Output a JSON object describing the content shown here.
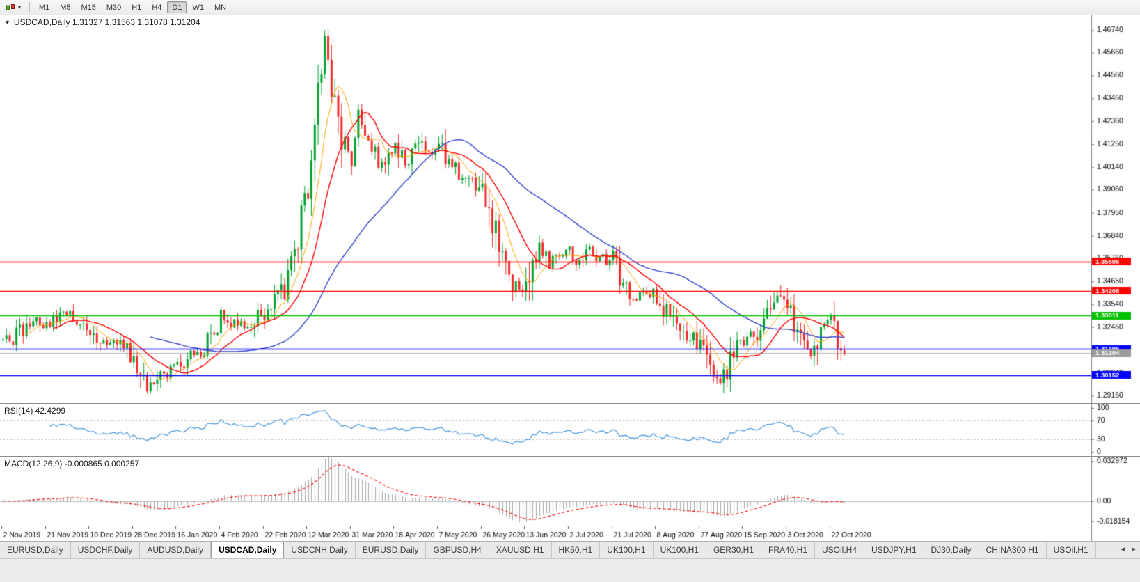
{
  "colors": {
    "up_candle": "#00a32e",
    "down_candle": "#f52a2a",
    "ma_fast": "#ffa400",
    "ma_mid": "#ff0000",
    "ma_slow": "#3344cc",
    "rsi_line": "#4596e0",
    "macd_hist": "#a9a9a9",
    "macd_signal": "#ff0000",
    "axis_line": "#808080",
    "level_dots": "#bdbdbd",
    "text": "#000000"
  },
  "toolbar": {
    "timeframes": [
      "M1",
      "M5",
      "M15",
      "M30",
      "H1",
      "H4",
      "D1",
      "W1",
      "MN"
    ],
    "active": "D1"
  },
  "main_chart": {
    "title": "USDCAD,Daily 1.31327 1.31563 1.31078 1.31204",
    "symbol": "USDCAD",
    "period": "Daily",
    "ohlc": {
      "open": "1.31327",
      "high": "1.31563",
      "low": "1.31078",
      "close": "1.31204"
    }
  },
  "tabs": {
    "items": [
      "EURUSD,Daily",
      "USDCHF,Daily",
      "AUDUSD,Daily",
      "USDCAD,Daily",
      "USDCNH,Daily",
      "EURUSD,Daily",
      "GBPUSD,H4",
      "XAUUSD,H1",
      "HK50,H1",
      "UK100,H1",
      "UK100,H1",
      "GER30,H1",
      "FRA40,H1",
      "USOil,H4",
      "USDJPY,H1",
      "DJ30,Daily",
      "CHINA300,H1",
      "USOil,H1"
    ],
    "active_index": 3
  },
  "chart_data": {
    "type": "candlestick",
    "symbol": "USDCAD",
    "timeframe": "Daily",
    "bar_count": 252,
    "seed": 20201030,
    "plot_fraction": 0.774,
    "last_candle": {
      "open": 1.31327,
      "high": 1.31563,
      "low": 1.31078,
      "close": 1.31204
    },
    "spike": {
      "bar": 96,
      "high": 1.4674
    },
    "close_anchors": [
      [
        0,
        1.3165
      ],
      [
        4,
        1.321
      ],
      [
        9,
        1.3275
      ],
      [
        13,
        1.325
      ],
      [
        18,
        1.3305
      ],
      [
        22,
        1.328
      ],
      [
        26,
        1.3245
      ],
      [
        30,
        1.317
      ],
      [
        35,
        1.316
      ],
      [
        39,
        1.3085
      ],
      [
        43,
        1.2955
      ],
      [
        47,
        1.301
      ],
      [
        52,
        1.3045
      ],
      [
        57,
        1.311
      ],
      [
        61,
        1.316
      ],
      [
        65,
        1.329
      ],
      [
        69,
        1.3255
      ],
      [
        73,
        1.3245
      ],
      [
        78,
        1.332
      ],
      [
        82,
        1.3385
      ],
      [
        85,
        1.344
      ],
      [
        88,
        1.364
      ],
      [
        91,
        1.395
      ],
      [
        93,
        1.426
      ],
      [
        95,
        1.451
      ],
      [
        96,
        1.464
      ],
      [
        98,
        1.443
      ],
      [
        100,
        1.419
      ],
      [
        102,
        1.409
      ],
      [
        104,
        1.406
      ],
      [
        106,
        1.423
      ],
      [
        109,
        1.415
      ],
      [
        112,
        1.403
      ],
      [
        115,
        1.409
      ],
      [
        117,
        1.413
      ],
      [
        120,
        1.403
      ],
      [
        123,
        1.416
      ],
      [
        126,
        1.408
      ],
      [
        130,
        1.413
      ],
      [
        133,
        1.405
      ],
      [
        136,
        1.399
      ],
      [
        139,
        1.3975
      ],
      [
        143,
        1.39
      ],
      [
        146,
        1.378
      ],
      [
        149,
        1.362
      ],
      [
        152,
        1.347
      ],
      [
        154,
        1.339
      ],
      [
        156,
        1.341
      ],
      [
        158,
        1.353
      ],
      [
        160,
        1.364
      ],
      [
        163,
        1.356
      ],
      [
        166,
        1.359
      ],
      [
        169,
        1.3605
      ],
      [
        172,
        1.356
      ],
      [
        175,
        1.3615
      ],
      [
        178,
        1.358
      ],
      [
        182,
        1.356
      ],
      [
        184,
        1.348
      ],
      [
        186,
        1.341
      ],
      [
        189,
        1.3395
      ],
      [
        192,
        1.342
      ],
      [
        195,
        1.339
      ],
      [
        198,
        1.332
      ],
      [
        201,
        1.3265
      ],
      [
        204,
        1.322
      ],
      [
        208,
        1.316
      ],
      [
        211,
        1.306
      ],
      [
        214,
        1.3
      ],
      [
        216,
        1.307
      ],
      [
        218,
        1.315
      ],
      [
        221,
        1.317
      ],
      [
        224,
        1.321
      ],
      [
        227,
        1.331
      ],
      [
        230,
        1.34
      ],
      [
        232,
        1.3415
      ],
      [
        234,
        1.331
      ],
      [
        236,
        1.327
      ],
      [
        239,
        1.315
      ],
      [
        241,
        1.3105
      ],
      [
        243,
        1.3175
      ],
      [
        245,
        1.324
      ],
      [
        247,
        1.331
      ],
      [
        248,
        1.333
      ],
      [
        250,
        1.31327
      ],
      [
        251,
        1.31204
      ]
    ],
    "x_axis": {
      "label_step_bars": 13,
      "labels": [
        "2 Nov 2019",
        "21 Nov 2019",
        "10 Dec 2019",
        "28 Dec 2019",
        "16 Jan 2020",
        "4 Feb 2020",
        "22 Feb 2020",
        "12 Mar 2020",
        "31 Mar 2020",
        "18 Apr 2020",
        "7 May 2020",
        "26 May 2020",
        "13 Jun 2020",
        "2 Jul 2020",
        "21 Jul 2020",
        "8 Aug 2020",
        "27 Aug 2020",
        "15 Sep 2020",
        "3 Oct 2020",
        "22 Oct 2020"
      ]
    },
    "y_axis": {
      "min": 1.288,
      "max": 1.4745,
      "ticks": [
        "1.46740",
        "1.45660",
        "1.44560",
        "1.43460",
        "1.42360",
        "1.41250",
        "1.40140",
        "1.39060",
        "1.37950",
        "1.36840",
        "1.35760",
        "1.34650",
        "1.33540",
        "1.32460",
        "1.31350",
        "1.30240",
        "1.29160"
      ]
    },
    "moving_averages": [
      {
        "period": 8,
        "color_key": "ma_fast",
        "width": 1
      },
      {
        "period": 16,
        "color_key": "ma_mid",
        "width": 1.4
      },
      {
        "period": 45,
        "color_key": "ma_slow",
        "width": 1.4
      }
    ],
    "hlines": [
      {
        "price": 1.35606,
        "label": "1.35606",
        "color": "#ff0000"
      },
      {
        "price": 1.34206,
        "label": "1.34206",
        "color": "#ff0000"
      },
      {
        "price": 1.33011,
        "label": "1.33011",
        "color": "#00c000"
      },
      {
        "price": 1.31405,
        "label": "1.31405",
        "color": "#0000ff"
      },
      {
        "price": 1.30152,
        "label": "1.30152",
        "color": "#0000ff"
      }
    ],
    "current_price": {
      "value": 1.31204,
      "label": "1.31204",
      "color": "#9a9a9a"
    },
    "rsi": {
      "period": 14,
      "label": "RSI(14) 42.4299",
      "value": 42.4299,
      "levels": [
        100,
        70,
        30,
        0
      ],
      "dotted_levels": [
        70,
        30
      ],
      "range": [
        -6,
        106
      ]
    },
    "macd": {
      "fast": 12,
      "slow": 26,
      "signal": 9,
      "label": "MACD(12,26,9) -0.000865 0.000257",
      "macd_value": -0.000865,
      "signal_value": 0.000257,
      "peak": 0.032972,
      "range": [
        -0.0185,
        0.0335
      ],
      "ticks": [
        {
          "v": 0.032972,
          "text": "0.032972"
        },
        {
          "v": 0,
          "text": "0.00"
        },
        {
          "v": -0.018154,
          "text": "-0.018154"
        }
      ]
    }
  }
}
